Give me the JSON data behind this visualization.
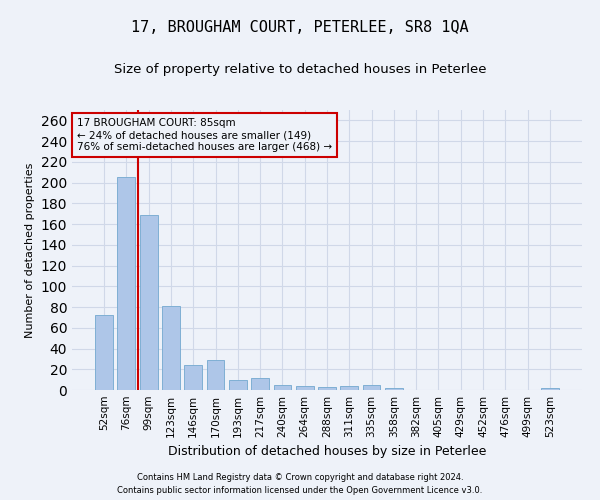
{
  "title": "17, BROUGHAM COURT, PETERLEE, SR8 1QA",
  "subtitle": "Size of property relative to detached houses in Peterlee",
  "xlabel": "Distribution of detached houses by size in Peterlee",
  "ylabel": "Number of detached properties",
  "footnote1": "Contains HM Land Registry data © Crown copyright and database right 2024.",
  "footnote2": "Contains public sector information licensed under the Open Government Licence v3.0.",
  "categories": [
    "52sqm",
    "76sqm",
    "99sqm",
    "123sqm",
    "146sqm",
    "170sqm",
    "193sqm",
    "217sqm",
    "240sqm",
    "264sqm",
    "288sqm",
    "311sqm",
    "335sqm",
    "358sqm",
    "382sqm",
    "405sqm",
    "429sqm",
    "452sqm",
    "476sqm",
    "499sqm",
    "523sqm"
  ],
  "values": [
    72,
    205,
    169,
    81,
    24,
    29,
    10,
    12,
    5,
    4,
    3,
    4,
    5,
    2,
    0,
    0,
    0,
    0,
    0,
    0,
    2
  ],
  "bar_color": "#aec6e8",
  "bar_edge_color": "#7fafd4",
  "annotation_box_text": "17 BROUGHAM COURT: 85sqm\n← 24% of detached houses are smaller (149)\n76% of semi-detached houses are larger (468) →",
  "annotation_line_color": "#cc0000",
  "annotation_box_edge_color": "#cc0000",
  "grid_color": "#d0d8e8",
  "ylim": [
    0,
    270
  ],
  "yticks": [
    0,
    20,
    40,
    60,
    80,
    100,
    120,
    140,
    160,
    180,
    200,
    220,
    240,
    260
  ],
  "background_color": "#eef2f9",
  "title_fontsize": 11,
  "subtitle_fontsize": 9.5,
  "xlabel_fontsize": 9,
  "ylabel_fontsize": 8,
  "tick_fontsize": 7.5,
  "footnote_fontsize": 6,
  "annot_fontsize": 7.5
}
